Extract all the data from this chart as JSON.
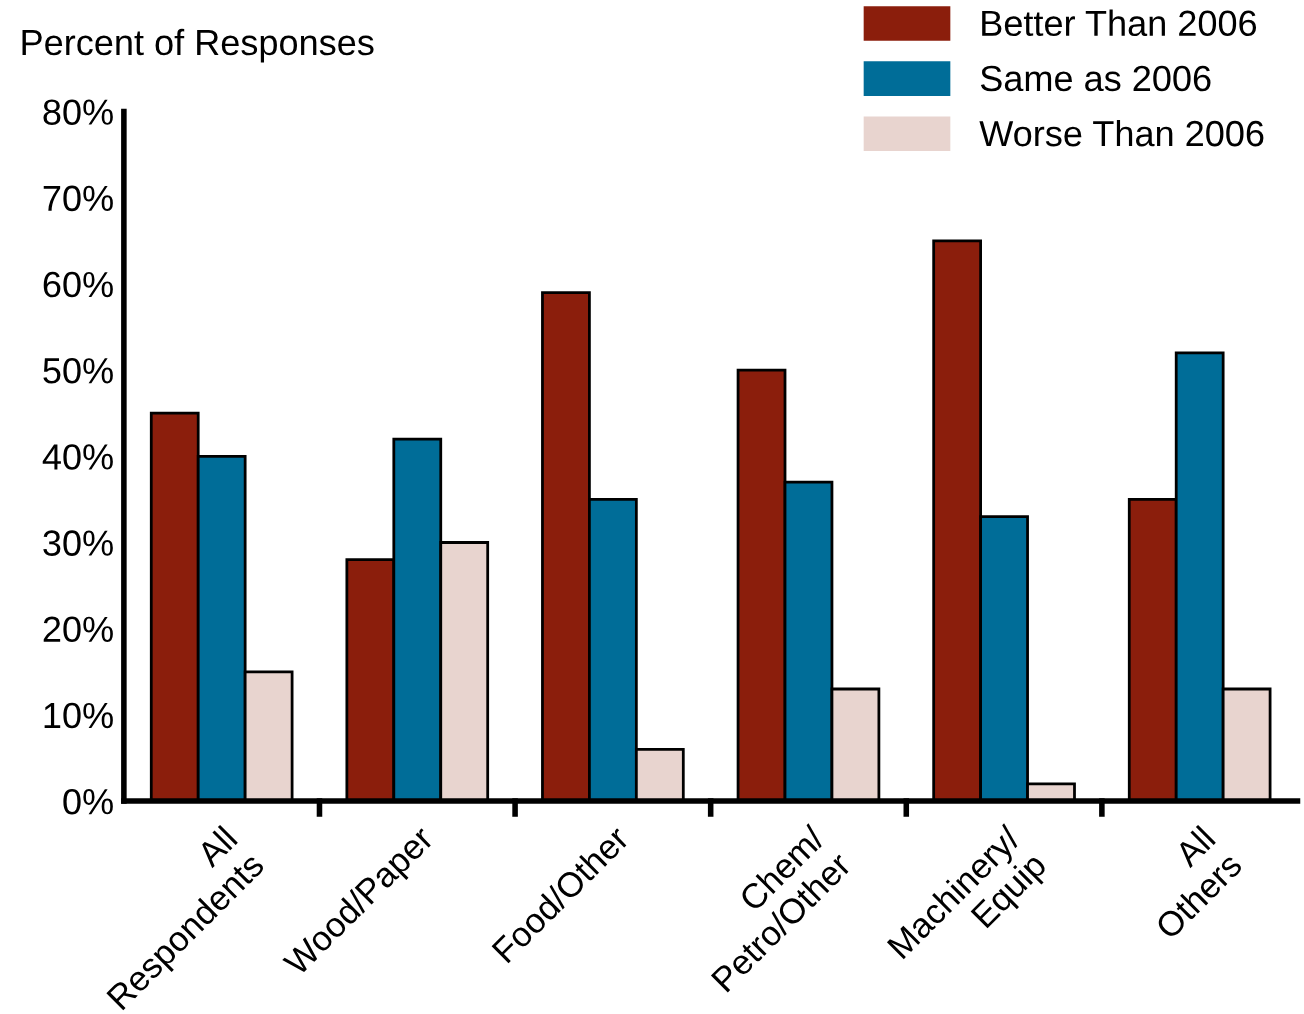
{
  "chart_data": {
    "type": "bar",
    "ylabel": "Percent of Responses",
    "categories": [
      "All\nRespondents",
      "Wood/Paper",
      "Food/Other",
      "Chem/\nPetro/Other",
      "Machinery/\nEquip",
      "All\nOthers"
    ],
    "series": [
      {
        "name": "Better Than 2006",
        "color": "#8b1e0c",
        "values": [
          45,
          28,
          59,
          50,
          65,
          35
        ]
      },
      {
        "name": "Same as 2006",
        "color": "#006d98",
        "values": [
          40,
          42,
          35,
          37,
          33,
          52
        ]
      },
      {
        "name": "Worse Than 2006",
        "color": "#e8d4cf",
        "values": [
          15,
          30,
          6,
          13,
          2,
          13
        ]
      }
    ],
    "ylim": [
      0,
      80
    ],
    "yticks": [
      {
        "value": 0,
        "label": "0%"
      },
      {
        "value": 10,
        "label": "10%"
      },
      {
        "value": 20,
        "label": "20%"
      },
      {
        "value": 30,
        "label": "30%"
      },
      {
        "value": 40,
        "label": "40%"
      },
      {
        "value": 50,
        "label": "50%"
      },
      {
        "value": 60,
        "label": "60%"
      },
      {
        "value": 70,
        "label": "70%"
      },
      {
        "value": 80,
        "label": "80%"
      }
    ],
    "grid": false,
    "legend": "top right"
  }
}
